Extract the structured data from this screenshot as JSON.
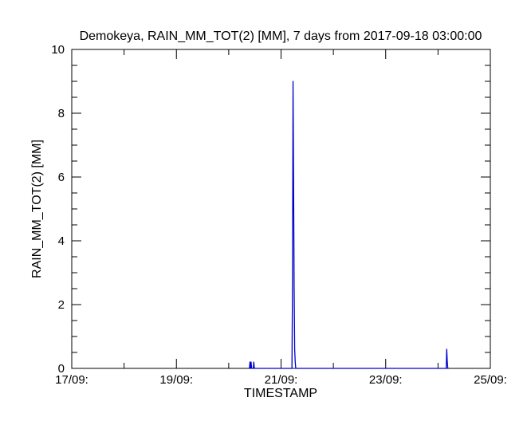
{
  "chart_data": {
    "type": "line",
    "title": "Demokeya, RAIN_MM_TOT(2) [MM], 7 days from  2017-09-18 03:00:00",
    "xlabel": "TIMESTAMP",
    "ylabel": "RAIN_MM_TOT(2) [MM]",
    "xlim": [
      "2017-09-17 00:00",
      "2017-09-25 00:00"
    ],
    "ylim": [
      0,
      10
    ],
    "x_tick_labels": [
      "17/09:",
      "19/09:",
      "21/09:",
      "23/09:",
      "25/09:"
    ],
    "y_tick_labels": [
      "0",
      "2",
      "4",
      "6",
      "8",
      "10"
    ],
    "grid": false,
    "line_color": "#0000cc",
    "series": [
      {
        "x": [
          "2017-09-20 09:30",
          "2017-09-20 09:45",
          "2017-09-20 10:00",
          "2017-09-20 10:15",
          "2017-09-20 10:30",
          "2017-09-20 10:45",
          "2017-09-20 11:00",
          "2017-09-20 11:15",
          "2017-09-20 11:30",
          "2017-09-20 11:45",
          "2017-09-20 12:00",
          "2017-09-20 12:15",
          "2017-09-20 12:30",
          "2017-09-21 05:00",
          "2017-09-21 05:15",
          "2017-09-21 05:30",
          "2017-09-21 05:45",
          "2017-09-21 06:00",
          "2017-09-21 06:15",
          "2017-09-21 06:30",
          "2017-09-21 06:45",
          "2017-09-21 07:00",
          "2017-09-21 07:15",
          "2017-09-21 07:30",
          "2017-09-21 07:45",
          "2017-09-24 03:45",
          "2017-09-24 04:00",
          "2017-09-24 04:15",
          "2017-09-24 04:30",
          "2017-09-24 04:45"
        ],
        "values": [
          0,
          0.2,
          0,
          0.2,
          0,
          0,
          0,
          0,
          0.2,
          0,
          0,
          0,
          0,
          0,
          2.6,
          9.0,
          5.9,
          2.6,
          0.6,
          0.2,
          0,
          0,
          0,
          0,
          0,
          0,
          0.6,
          0.2,
          0,
          0
        ]
      }
    ]
  }
}
